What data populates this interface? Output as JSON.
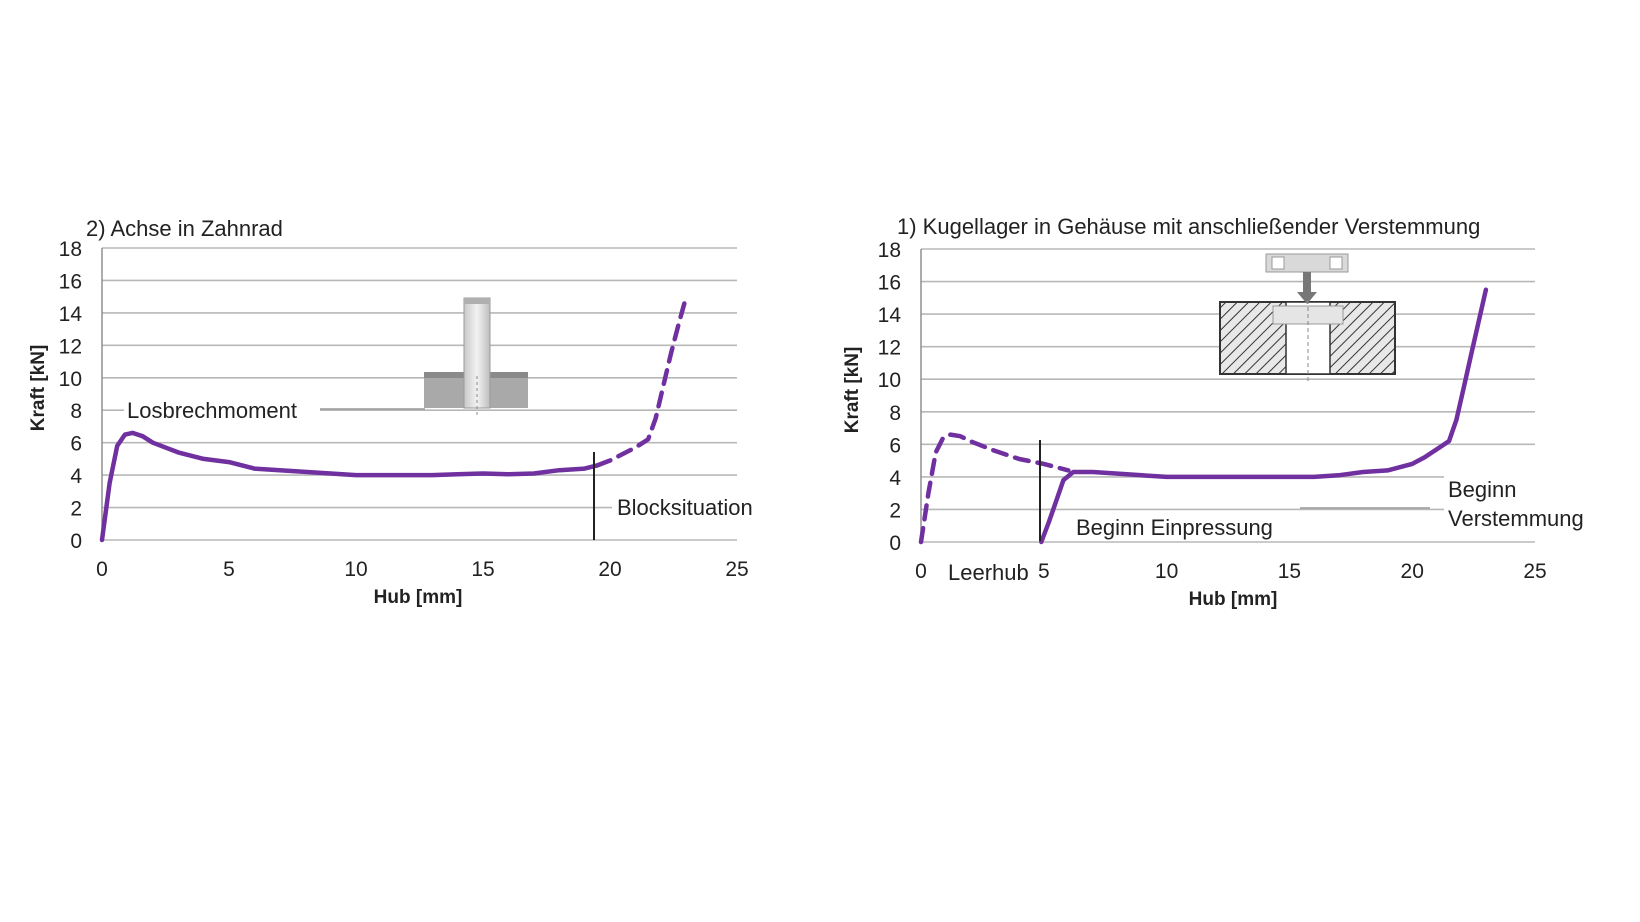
{
  "colors": {
    "series": "#7030a0",
    "grid": "#b8b8b8",
    "text": "#222222"
  },
  "chart_data": [
    {
      "type": "line",
      "title": "2) Achse in Zahnrad",
      "xlabel": "Hub [mm]",
      "ylabel": "Kraft [kN]",
      "xlim": [
        0,
        25
      ],
      "ylim": [
        0,
        18
      ],
      "xticks": [
        "0",
        "5",
        "10",
        "15",
        "20",
        "25"
      ],
      "yticks": [
        "0",
        "2",
        "4",
        "6",
        "8",
        "10",
        "12",
        "14",
        "16",
        "18"
      ],
      "grid": true,
      "series": [
        {
          "style": "solid",
          "x": [
            0,
            0.3,
            0.6,
            0.9,
            1.2,
            1.6,
            2,
            3,
            4,
            5,
            6,
            7,
            8,
            9,
            10,
            11,
            12,
            13,
            14,
            15,
            16,
            17,
            18,
            19,
            19.5
          ],
          "y": [
            0,
            3.5,
            5.8,
            6.5,
            6.6,
            6.4,
            6.0,
            5.4,
            5.0,
            4.8,
            4.4,
            4.3,
            4.2,
            4.1,
            4.0,
            4.0,
            4.0,
            4.0,
            4.05,
            4.1,
            4.05,
            4.1,
            4.3,
            4.4,
            4.6
          ]
        },
        {
          "style": "dashed",
          "x": [
            19.5,
            20,
            20.5,
            21,
            21.5,
            21.8,
            22.1,
            22.4,
            22.7,
            23
          ],
          "y": [
            4.6,
            4.9,
            5.3,
            5.7,
            6.2,
            7.5,
            9.5,
            11.5,
            13.3,
            15.0
          ]
        }
      ],
      "annotations": {
        "peak": "Losbrechmoment",
        "block": "Blocksituation"
      }
    },
    {
      "type": "line",
      "title": "1) Kugellager in Gehäuse mit anschließender Verstemmung",
      "xlabel": "Hub [mm]",
      "ylabel": "Kraft [kN]",
      "xlim": [
        0,
        25
      ],
      "ylim": [
        0,
        18
      ],
      "xticks": [
        "0",
        "5",
        "10",
        "15",
        "20",
        "25"
      ],
      "yticks": [
        "0",
        "2",
        "4",
        "6",
        "8",
        "10",
        "12",
        "14",
        "16",
        "18"
      ],
      "grid": true,
      "series": [
        {
          "style": "dashed",
          "x": [
            0,
            0.3,
            0.6,
            0.9,
            1.2,
            1.6,
            2,
            3,
            4,
            5,
            6
          ],
          "y": [
            0,
            3.0,
            5.5,
            6.4,
            6.6,
            6.5,
            6.2,
            5.6,
            5.1,
            4.8,
            4.4
          ]
        },
        {
          "style": "solid",
          "x": [
            4.9,
            5.2,
            5.5,
            5.8,
            6.2,
            7,
            8,
            9,
            10,
            11,
            12,
            13,
            14,
            15,
            16,
            17,
            18,
            19,
            20,
            20.5,
            21,
            21.5,
            21.8,
            22.1,
            22.4,
            22.7,
            23
          ],
          "y": [
            0,
            1.2,
            2.5,
            3.8,
            4.3,
            4.3,
            4.2,
            4.1,
            4.0,
            4.0,
            4.0,
            4.0,
            4.0,
            4.0,
            4.0,
            4.1,
            4.3,
            4.4,
            4.8,
            5.2,
            5.7,
            6.2,
            7.5,
            9.5,
            11.5,
            13.5,
            15.5
          ]
        }
      ],
      "annotations": {
        "idle": "Leerhub",
        "press": "Beginn Einpressung",
        "caulk_line1": "Beginn",
        "caulk_line2": "Verstemmung"
      }
    }
  ]
}
